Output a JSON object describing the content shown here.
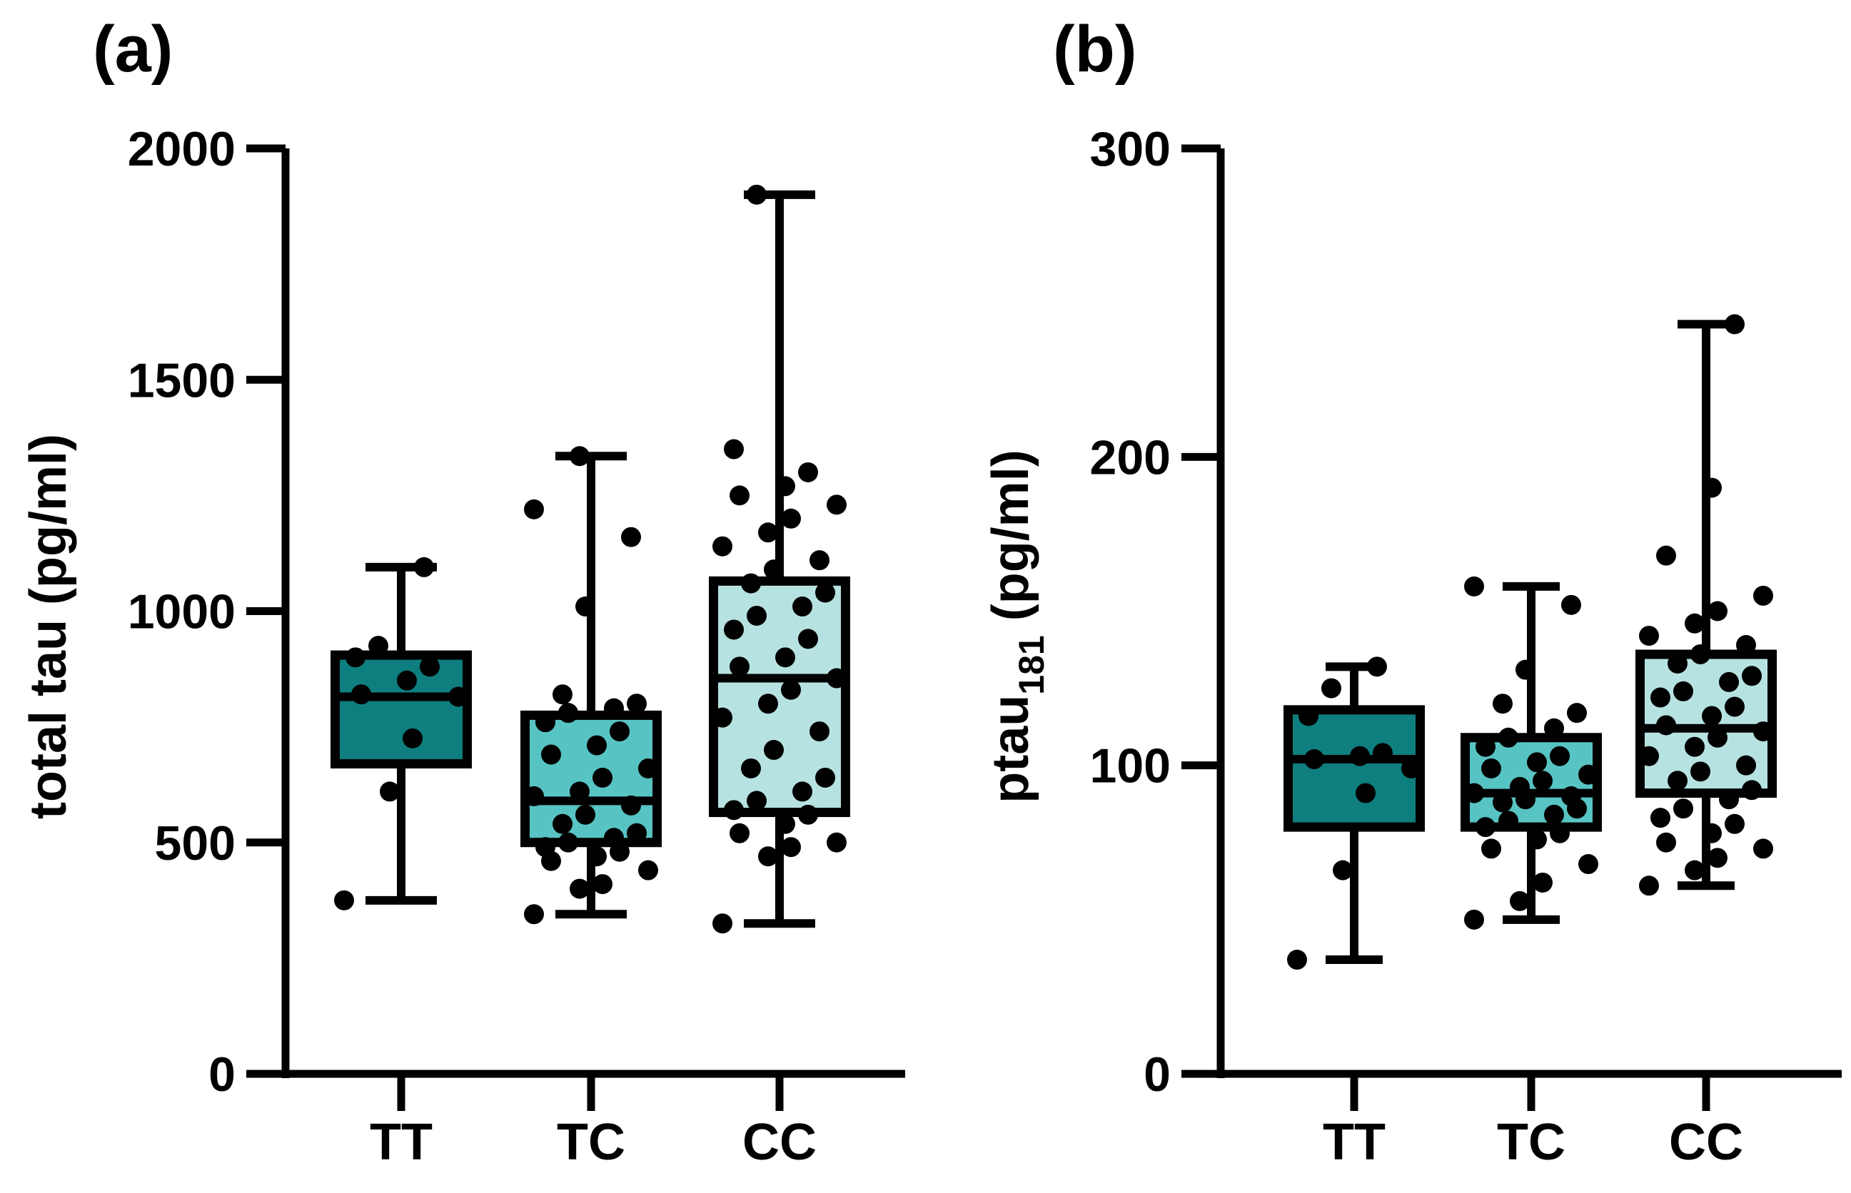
{
  "figure": {
    "panels": [
      "(a)",
      "(b)"
    ]
  },
  "colors": {
    "TT": "#0e7e7e",
    "TC": "#58c3c3",
    "CC": "#b7e2e2",
    "ink": "#000000"
  },
  "chart_data": [
    {
      "type": "box",
      "panel_label": "(a)",
      "ylabel": "total tau (pg/ml)",
      "ylim": [
        0,
        2000
      ],
      "yticks": [
        0,
        500,
        1000,
        1500,
        2000
      ],
      "categories": [
        "TT",
        "TC",
        "CC"
      ],
      "boxes": [
        {
          "group": "TT",
          "min": 375,
          "q1": 670,
          "median": 815,
          "q3": 905,
          "max": 1095
        },
        {
          "group": "TC",
          "min": 345,
          "q1": 500,
          "median": 590,
          "q3": 775,
          "max": 1335
        },
        {
          "group": "CC",
          "min": 325,
          "q1": 565,
          "median": 855,
          "q3": 1065,
          "max": 1900
        }
      ],
      "points": {
        "TT": [
          375,
          610,
          725,
          815,
          820,
          850,
          880,
          900,
          925,
          1095
        ],
        "TC": [
          345,
          400,
          410,
          440,
          460,
          470,
          480,
          490,
          500,
          510,
          520,
          540,
          560,
          580,
          600,
          610,
          640,
          660,
          690,
          710,
          740,
          760,
          780,
          790,
          800,
          820,
          1010,
          1160,
          1220,
          1335
        ],
        "CC": [
          325,
          470,
          490,
          500,
          520,
          540,
          560,
          570,
          590,
          610,
          640,
          660,
          700,
          740,
          770,
          800,
          830,
          855,
          880,
          900,
          940,
          960,
          990,
          1010,
          1040,
          1060,
          1090,
          1110,
          1140,
          1170,
          1200,
          1230,
          1250,
          1270,
          1300,
          1350,
          1900
        ]
      }
    },
    {
      "type": "box",
      "panel_label": "(b)",
      "ylabel_main": "ptau",
      "ylabel_sub": "181",
      "ylabel_unit": " (pg/ml)",
      "ylim": [
        0,
        300
      ],
      "yticks": [
        0,
        100,
        200,
        300
      ],
      "categories": [
        "TT",
        "TC",
        "CC"
      ],
      "boxes": [
        {
          "group": "TT",
          "min": 37,
          "q1": 80,
          "median": 102,
          "q3": 118,
          "max": 132
        },
        {
          "group": "TC",
          "min": 50,
          "q1": 80,
          "median": 91,
          "q3": 109,
          "max": 158
        },
        {
          "group": "CC",
          "min": 61,
          "q1": 91,
          "median": 112,
          "q3": 136,
          "max": 243
        }
      ],
      "points": {
        "TT": [
          37,
          66,
          91,
          99,
          102,
          103,
          104,
          116,
          125,
          132
        ],
        "TC": [
          50,
          56,
          62,
          68,
          73,
          76,
          78,
          80,
          82,
          84,
          86,
          88,
          89,
          90,
          91,
          93,
          95,
          97,
          99,
          101,
          103,
          106,
          109,
          112,
          117,
          120,
          131,
          152,
          158
        ],
        "CC": [
          61,
          66,
          70,
          73,
          75,
          78,
          81,
          83,
          86,
          89,
          92,
          95,
          98,
          100,
          103,
          106,
          109,
          111,
          113,
          116,
          119,
          122,
          124,
          127,
          129,
          133,
          136,
          139,
          142,
          146,
          150,
          155,
          168,
          190,
          243
        ]
      }
    }
  ]
}
